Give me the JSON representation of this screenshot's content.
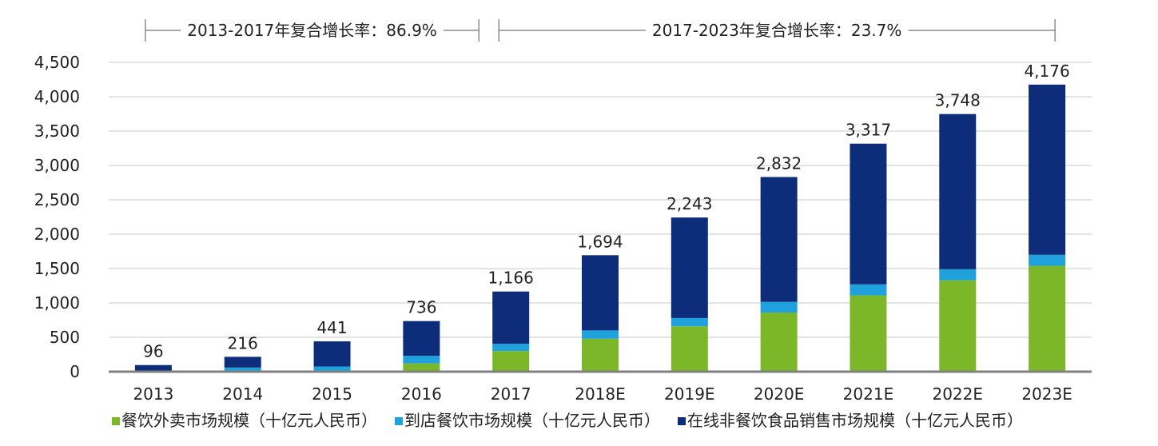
{
  "chart_data": {
    "type": "bar",
    "stacked": true,
    "categories": [
      "2013",
      "2014",
      "2015",
      "2016",
      "2017",
      "2018E",
      "2019E",
      "2020E",
      "2021E",
      "2022E",
      "2023E"
    ],
    "series": [
      {
        "name": "餐饮外卖市场规模（十亿元人民币）",
        "color": "#7cb72a",
        "values": [
          0,
          0,
          0,
          120,
          300,
          480,
          660,
          860,
          1110,
          1330,
          1540
        ]
      },
      {
        "name": "到店餐饮市场规模（十亿元人民币）",
        "color": "#1ea1dc",
        "values": [
          15,
          60,
          75,
          110,
          105,
          120,
          120,
          155,
          160,
          160,
          160
        ]
      },
      {
        "name": "在线非餐饮食品销售市场规模（十亿元人民币）",
        "color": "#0d2d7a",
        "values": [
          81,
          156,
          366,
          506,
          761,
          1094,
          1463,
          1817,
          2047,
          2258,
          2476
        ]
      }
    ],
    "totals": [
      "96",
      "216",
      "441",
      "736",
      "1,166",
      "1,694",
      "2,243",
      "2,832",
      "3,317",
      "3,748",
      "4,176"
    ],
    "yticks": [
      "0",
      "500",
      "1,000",
      "1,500",
      "2,000",
      "2,500",
      "3,000",
      "3,500",
      "4,000",
      "4,500"
    ],
    "ylim": [
      0,
      4500
    ],
    "ytick_step": 500,
    "grid": true,
    "legend_position": "bottom",
    "annotations": [
      {
        "text": "2013-2017年复合增长率：86.9%",
        "from_category": "2013",
        "to_category": "2017"
      },
      {
        "text": "2017-2023年复合增长率：23.7%",
        "from_category": "2017",
        "to_category": "2023E"
      }
    ],
    "title": "",
    "xlabel": "",
    "ylabel": ""
  }
}
